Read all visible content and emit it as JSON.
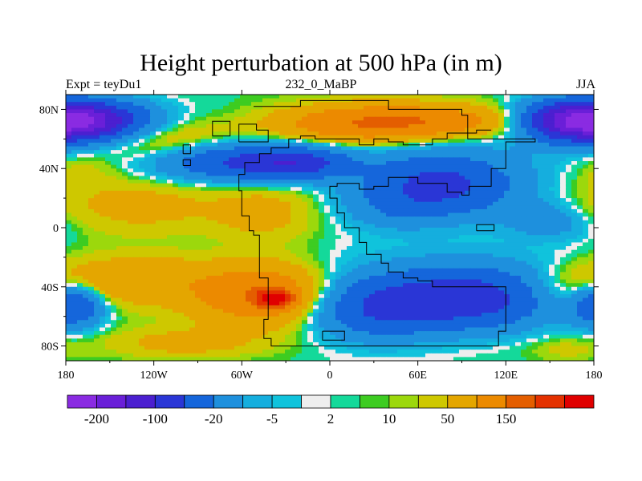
{
  "chart_data": {
    "type": "heatmap",
    "title": "Height perturbation at 500 hPa (in m)",
    "left_label": "Expt = teyDu1",
    "center_label": "232_0_MaBP",
    "right_label": "JJA",
    "x_ticks": [
      {
        "value": -180,
        "label": "180"
      },
      {
        "value": -120,
        "label": "120W"
      },
      {
        "value": -60,
        "label": "60W"
      },
      {
        "value": 0,
        "label": "0"
      },
      {
        "value": 60,
        "label": "60E"
      },
      {
        "value": 120,
        "label": "120E"
      },
      {
        "value": 180,
        "label": "180"
      }
    ],
    "y_ticks": [
      {
        "value": 80,
        "label": "80N"
      },
      {
        "value": 40,
        "label": "40N"
      },
      {
        "value": 0,
        "label": "0"
      },
      {
        "value": -40,
        "label": "40S"
      },
      {
        "value": -80,
        "label": "80S"
      }
    ],
    "xlim": [
      -180,
      180
    ],
    "ylim": [
      -90,
      90
    ],
    "colorbar": {
      "colors": [
        "#8a2be2",
        "#6a1fd8",
        "#4b1fd0",
        "#2a36d6",
        "#1566db",
        "#1e90dd",
        "#15aede",
        "#10c3dc",
        "#eeeeee",
        "#14d99a",
        "#3dcc21",
        "#9cd80c",
        "#cec800",
        "#e4a600",
        "#ec8a00",
        "#e45e00",
        "#e43100",
        "#e00000"
      ],
      "labels": [
        {
          "boundary": 1,
          "label": "-200"
        },
        {
          "boundary": 3,
          "label": "-100"
        },
        {
          "boundary": 5,
          "label": "-20"
        },
        {
          "boundary": 7,
          "label": "-5"
        },
        {
          "boundary": 9,
          "label": "2"
        },
        {
          "boundary": 11,
          "label": "10"
        },
        {
          "boundary": 13,
          "label": "50"
        },
        {
          "boundary": 15,
          "label": "150"
        }
      ]
    },
    "field_features": [
      {
        "lon": -165,
        "lat": 72,
        "value": -190,
        "rlon": 40,
        "rlat": 13
      },
      {
        "lon": 165,
        "lat": 72,
        "value": -180,
        "rlon": 35,
        "rlat": 13
      },
      {
        "lon": 60,
        "lat": 72,
        "value": 90,
        "rlon": 70,
        "rlat": 11
      },
      {
        "lon": 10,
        "lat": 68,
        "value": 50,
        "rlon": 55,
        "rlat": 14
      },
      {
        "lon": -120,
        "lat": 60,
        "value": 40,
        "rlon": 55,
        "rlat": 14
      },
      {
        "lon": 135,
        "lat": 66,
        "value": 10,
        "rlon": 30,
        "rlat": 10
      },
      {
        "lon": -55,
        "lat": 44,
        "value": -110,
        "rlon": 55,
        "rlat": 12
      },
      {
        "lon": -20,
        "lat": 44,
        "value": -70,
        "rlon": 30,
        "rlat": 10
      },
      {
        "lon": 75,
        "lat": 28,
        "value": -120,
        "rlon": 50,
        "rlat": 20
      },
      {
        "lon": 40,
        "lat": 12,
        "value": -25,
        "rlon": 35,
        "rlat": 14
      },
      {
        "lon": 150,
        "lat": 5,
        "value": -40,
        "rlon": 30,
        "rlat": 12
      },
      {
        "lon": -170,
        "lat": 38,
        "value": 15,
        "rlon": 25,
        "rlat": 12
      },
      {
        "lon": -130,
        "lat": 15,
        "value": 25,
        "rlon": 55,
        "rlat": 20
      },
      {
        "lon": -45,
        "lat": 10,
        "value": 25,
        "rlon": 35,
        "rlat": 22
      },
      {
        "lon": 175,
        "lat": 10,
        "value": 8,
        "rlon": 20,
        "rlat": 10
      },
      {
        "lon": -130,
        "lat": -35,
        "value": 50,
        "rlon": 55,
        "rlat": 18
      },
      {
        "lon": -38,
        "lat": -48,
        "value": 190,
        "rlon": 12,
        "rlat": 6
      },
      {
        "lon": -45,
        "lat": -45,
        "value": 100,
        "rlon": 45,
        "rlat": 20
      },
      {
        "lon": 95,
        "lat": -48,
        "value": -130,
        "rlon": 55,
        "rlat": 20
      },
      {
        "lon": 30,
        "lat": -55,
        "value": -90,
        "rlon": 45,
        "rlat": 20
      },
      {
        "lon": -175,
        "lat": -52,
        "value": -110,
        "rlon": 20,
        "rlat": 14
      },
      {
        "lon": 168,
        "lat": -42,
        "value": 40,
        "rlon": 40,
        "rlat": 16
      },
      {
        "lon": -100,
        "lat": -78,
        "value": 25,
        "rlon": 50,
        "rlat": 10
      },
      {
        "lon": 160,
        "lat": -82,
        "value": 12,
        "rlon": 25,
        "rlat": 8
      }
    ],
    "field_background": -3
  }
}
